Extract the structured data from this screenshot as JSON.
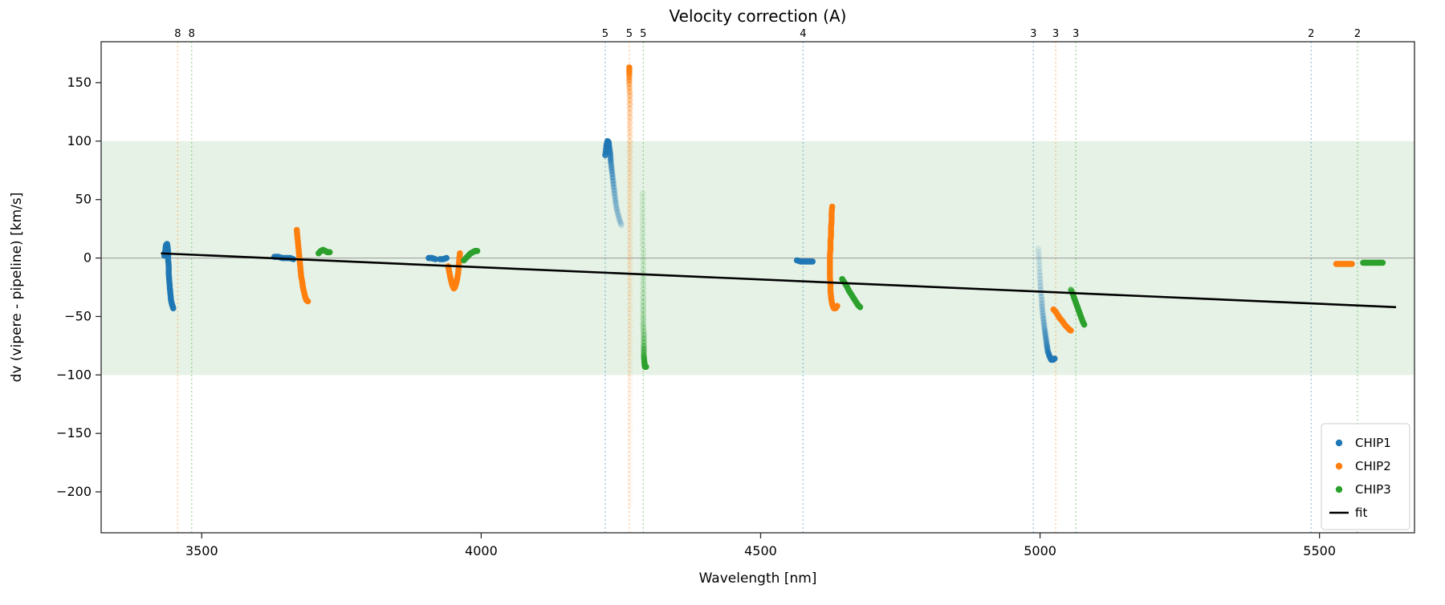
{
  "title": "Velocity correction (A)",
  "axes": {
    "xlabel": "Wavelength [nm]",
    "ylabel": "dv (vipere - pipeline) [km/s]"
  },
  "colors": {
    "CHIP1": "#1f77b4",
    "CHIP2": "#ff7f0e",
    "CHIP3": "#2ca02c",
    "fit": "#000000",
    "band": "rgba(0,128,0,0.10)",
    "zero_line": "#999999",
    "frame": "#2b2b2b"
  },
  "chart_data": {
    "type": "scatter",
    "title": "Velocity correction (A)",
    "xlabel": "Wavelength [nm]",
    "ylabel": "dv (vipere - pipeline) [km/s]",
    "xlim": [
      3320,
      5670
    ],
    "ylim": [
      -235,
      185
    ],
    "xticks": [
      3500,
      4000,
      4500,
      5000,
      5500
    ],
    "yticks": [
      150,
      100,
      50,
      0,
      -50,
      -100,
      -150,
      -200
    ],
    "grid": false,
    "shaded_band": {
      "ymin": -100,
      "ymax": 100,
      "color": "rgba(0,128,0,0.10)"
    },
    "zero_line_y": 0,
    "order_markers": [
      {
        "x": 3457,
        "label": "8",
        "series": "CHIP2"
      },
      {
        "x": 3482,
        "label": "8",
        "series": "CHIP3"
      },
      {
        "x": 4222,
        "label": "5",
        "series": "CHIP1"
      },
      {
        "x": 4265,
        "label": "5",
        "series": "CHIP2"
      },
      {
        "x": 4290,
        "label": "5",
        "series": "CHIP3"
      },
      {
        "x": 4576,
        "label": "4",
        "series": "CHIP1"
      },
      {
        "x": 4988,
        "label": "3",
        "series": "CHIP1"
      },
      {
        "x": 5028,
        "label": "3",
        "series": "CHIP2"
      },
      {
        "x": 5064,
        "label": "3",
        "series": "CHIP3"
      },
      {
        "x": 5485,
        "label": "2",
        "series": "CHIP1"
      },
      {
        "x": 5568,
        "label": "2",
        "series": "CHIP3"
      }
    ],
    "fit_line": {
      "x1": 3427,
      "y1": 4,
      "x2": 5637,
      "y2": -42
    },
    "legend": {
      "position": "lower right",
      "entries": [
        {
          "label": "CHIP1",
          "type": "dot",
          "series": "CHIP1"
        },
        {
          "label": "CHIP2",
          "type": "dot",
          "series": "CHIP2"
        },
        {
          "label": "CHIP3",
          "type": "dot",
          "series": "CHIP3"
        },
        {
          "label": "fit",
          "type": "line",
          "series": "fit"
        }
      ]
    },
    "series": [
      {
        "name": "CHIP1",
        "color": "#1f77b4",
        "clusters": [
          [
            [
              3433,
              2
            ],
            [
              3435,
              7
            ],
            [
              3436,
              11
            ],
            [
              3438,
              12
            ],
            [
              3439,
              9
            ],
            [
              3440,
              4
            ],
            [
              3440,
              -2
            ],
            [
              3441,
              -8
            ],
            [
              3441,
              -14
            ],
            [
              3442,
              -20
            ],
            [
              3443,
              -26
            ],
            [
              3444,
              -31
            ],
            [
              3445,
              -36
            ],
            [
              3447,
              -40
            ],
            [
              3449,
              -43
            ]
          ],
          [
            [
              3630,
              1
            ],
            [
              3637,
              1
            ],
            [
              3644,
              0
            ],
            [
              3651,
              0
            ],
            [
              3658,
              0
            ],
            [
              3664,
              -1
            ]
          ],
          [
            [
              3906,
              0
            ],
            [
              3912,
              0
            ],
            [
              3918,
              -1
            ]
          ],
          [
            [
              3926,
              -1
            ],
            [
              3932,
              -1
            ],
            [
              3938,
              0
            ]
          ],
          [
            [
              4222,
              88,
              0.9
            ],
            [
              4224,
              96,
              0.95
            ],
            [
              4226,
              100,
              0.95
            ],
            [
              4228,
              99,
              0.9
            ],
            [
              4229,
              95,
              0.85
            ],
            [
              4231,
              89,
              0.75
            ],
            [
              4232,
              82,
              0.65
            ],
            [
              4234,
              74,
              0.55
            ],
            [
              4236,
              66,
              0.47
            ],
            [
              4238,
              58,
              0.4
            ],
            [
              4240,
              50,
              0.34
            ],
            [
              4242,
              43,
              0.28
            ],
            [
              4245,
              37,
              0.23
            ],
            [
              4248,
              32,
              0.19
            ],
            [
              4251,
              28,
              0.15
            ]
          ],
          [
            [
              4565,
              -2
            ],
            [
              4572,
              -3
            ],
            [
              4579,
              -3
            ],
            [
              4586,
              -3
            ],
            [
              4593,
              -3
            ]
          ],
          [
            [
              4997,
              8,
              0.1
            ],
            [
              4998,
              0,
              0.13
            ],
            [
              4999,
              -9,
              0.16
            ],
            [
              5000,
              -18,
              0.2
            ],
            [
              5001,
              -27,
              0.24
            ],
            [
              5003,
              -36,
              0.28
            ],
            [
              5004,
              -44,
              0.33
            ],
            [
              5006,
              -52,
              0.39
            ],
            [
              5008,
              -60,
              0.46
            ],
            [
              5010,
              -67,
              0.54
            ],
            [
              5012,
              -74,
              0.63
            ],
            [
              5014,
              -80,
              0.74
            ],
            [
              5017,
              -84,
              0.86
            ],
            [
              5020,
              -87,
              1
            ],
            [
              5023,
              -87,
              1
            ],
            [
              5026,
              -86,
              1
            ]
          ]
        ]
      },
      {
        "name": "CHIP2",
        "color": "#ff7f0e",
        "clusters": [
          [
            [
              3670,
              24
            ],
            [
              3671,
              19
            ],
            [
              3672,
              14
            ],
            [
              3673,
              9
            ],
            [
              3674,
              4
            ],
            [
              3675,
              -1
            ],
            [
              3676,
              -6
            ],
            [
              3677,
              -11
            ],
            [
              3678,
              -16
            ],
            [
              3680,
              -21
            ],
            [
              3681,
              -25
            ],
            [
              3683,
              -29
            ],
            [
              3685,
              -33
            ],
            [
              3687,
              -36
            ],
            [
              3690,
              -37
            ]
          ],
          [
            [
              3941,
              -7
            ],
            [
              3943,
              -12
            ],
            [
              3945,
              -17
            ],
            [
              3947,
              -21
            ],
            [
              3949,
              -24
            ],
            [
              3951,
              -26
            ],
            [
              3953,
              -25
            ],
            [
              3955,
              -22
            ],
            [
              3957,
              -18
            ],
            [
              3959,
              -12
            ],
            [
              3960,
              -6
            ],
            [
              3961,
              0
            ],
            [
              3962,
              4
            ]
          ],
          [
            [
              4265,
              163,
              1
            ],
            [
              4265,
              157,
              0.8
            ],
            [
              4265,
              149,
              0.55
            ],
            [
              4266,
              139,
              0.42
            ],
            [
              4266,
              128,
              0.34
            ],
            [
              4266,
              116,
              0.28
            ],
            [
              4266,
              104,
              0.24
            ],
            [
              4266,
              91,
              0.21
            ],
            [
              4266,
              78,
              0.19
            ],
            [
              4266,
              65,
              0.17
            ],
            [
              4266,
              52,
              0.15
            ],
            [
              4266,
              39,
              0.14
            ],
            [
              4266,
              26,
              0.13
            ],
            [
              4266,
              13,
              0.12
            ],
            [
              4266,
              0,
              0.12
            ],
            [
              4266,
              -13,
              0.11
            ],
            [
              4266,
              -26,
              0.11
            ],
            [
              4266,
              -40,
              0.1
            ],
            [
              4266,
              -54,
              0.1
            ],
            [
              4266,
              -68,
              0.09
            ],
            [
              4266,
              -82,
              0.09
            ],
            [
              4266,
              -96,
              0.08
            ],
            [
              4266,
              -110,
              0.08
            ],
            [
              4266,
              -124,
              0.07
            ],
            [
              4266,
              -138,
              0.07
            ],
            [
              4266,
              -152,
              0.07
            ],
            [
              4266,
              -167,
              0.06
            ],
            [
              4266,
              -182,
              0.06
            ],
            [
              4266,
              -197,
              0.06
            ],
            [
              4266,
              -212,
              0.05
            ]
          ],
          [
            [
              4628,
              44
            ],
            [
              4627,
              38
            ],
            [
              4627,
              32
            ],
            [
              4626,
              26
            ],
            [
              4626,
              20
            ],
            [
              4625,
              14
            ],
            [
              4625,
              8
            ],
            [
              4624,
              2
            ],
            [
              4624,
              -4
            ],
            [
              4624,
              -10
            ],
            [
              4624,
              -16
            ],
            [
              4625,
              -22
            ],
            [
              4625,
              -28
            ],
            [
              4626,
              -33
            ],
            [
              4627,
              -37
            ],
            [
              4629,
              -41
            ],
            [
              4631,
              -43
            ],
            [
              4634,
              -43
            ],
            [
              4637,
              -41
            ]
          ],
          [
            [
              5024,
              -44
            ],
            [
              5028,
              -46
            ],
            [
              5032,
              -49
            ],
            [
              5036,
              -52
            ],
            [
              5040,
              -54
            ],
            [
              5044,
              -57
            ],
            [
              5048,
              -59
            ],
            [
              5052,
              -61
            ],
            [
              5055,
              -62
            ]
          ],
          [
            [
              5530,
              -5
            ],
            [
              5537,
              -5
            ],
            [
              5544,
              -5
            ],
            [
              5551,
              -5
            ],
            [
              5558,
              -5
            ]
          ]
        ]
      },
      {
        "name": "CHIP3",
        "color": "#2ca02c",
        "clusters": [
          [
            [
              3709,
              4
            ],
            [
              3713,
              6
            ],
            [
              3717,
              7
            ],
            [
              3721,
              6
            ],
            [
              3725,
              5
            ],
            [
              3729,
              5
            ]
          ],
          [
            [
              3969,
              -2
            ],
            [
              3973,
              0
            ],
            [
              3977,
              2
            ],
            [
              3981,
              4
            ],
            [
              3985,
              5
            ],
            [
              3989,
              6
            ],
            [
              3993,
              6
            ]
          ],
          [
            [
              4289,
              55,
              0.13
            ],
            [
              4289,
              42,
              0.13
            ],
            [
              4289,
              29,
              0.14
            ],
            [
              4289,
              16,
              0.15
            ],
            [
              4290,
              3,
              0.16
            ],
            [
              4290,
              -10,
              0.18
            ],
            [
              4290,
              -22,
              0.2
            ],
            [
              4290,
              -34,
              0.23
            ],
            [
              4290,
              -45,
              0.27
            ],
            [
              4290,
              -56,
              0.33
            ],
            [
              4291,
              -66,
              0.42
            ],
            [
              4291,
              -75,
              0.55
            ],
            [
              4291,
              -83,
              0.72
            ],
            [
              4292,
              -89,
              0.9
            ],
            [
              4293,
              -93,
              1
            ],
            [
              4295,
              -93,
              1
            ]
          ],
          [
            [
              4646,
              -18
            ],
            [
              4650,
              -21
            ],
            [
              4654,
              -24
            ],
            [
              4658,
              -28
            ],
            [
              4662,
              -31
            ],
            [
              4666,
              -34
            ],
            [
              4670,
              -37
            ],
            [
              4674,
              -40
            ],
            [
              4678,
              -42
            ]
          ],
          [
            [
              5055,
              -27,
              0.6
            ],
            [
              5058,
              -30,
              0.8
            ],
            [
              5061,
              -34,
              1
            ],
            [
              5064,
              -38,
              1
            ],
            [
              5067,
              -42,
              1
            ],
            [
              5070,
              -46,
              1
            ],
            [
              5073,
              -50,
              1
            ],
            [
              5076,
              -54,
              1
            ],
            [
              5079,
              -57,
              1
            ]
          ],
          [
            [
              5578,
              -4
            ],
            [
              5585,
              -4
            ],
            [
              5592,
              -4
            ],
            [
              5599,
              -4
            ],
            [
              5606,
              -4
            ],
            [
              5613,
              -4
            ]
          ]
        ]
      }
    ]
  }
}
